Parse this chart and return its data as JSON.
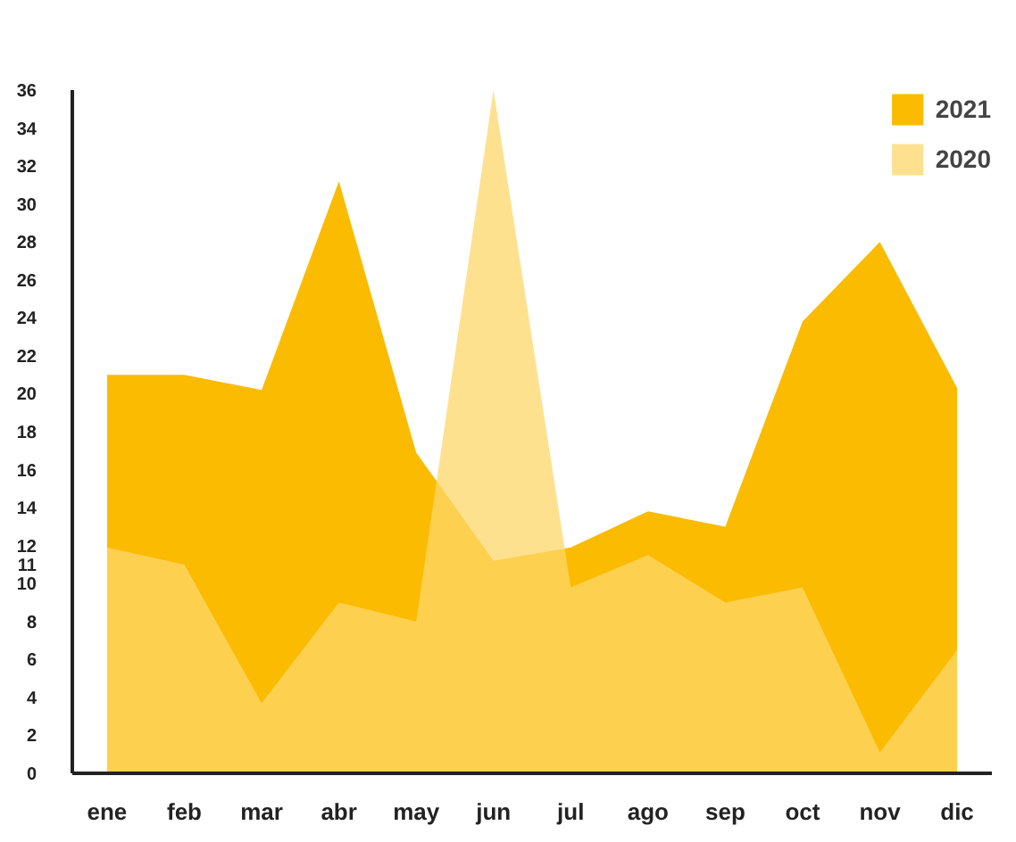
{
  "chart_data": {
    "type": "area",
    "categories": [
      "ene",
      "feb",
      "mar",
      "abr",
      "may",
      "jun",
      "jul",
      "ago",
      "sep",
      "oct",
      "nov",
      "dic"
    ],
    "series": [
      {
        "name": "2021",
        "color": "#fbbb00",
        "values": [
          21,
          21,
          20.2,
          31.2,
          16.9,
          11.2,
          11.9,
          13.8,
          13.0,
          23.8,
          28,
          20.3
        ]
      },
      {
        "name": "2020",
        "color": "#fdd76a",
        "values": [
          11.9,
          11,
          3.7,
          9.0,
          8.0,
          36,
          9.8,
          11.5,
          9.0,
          9.8,
          1.1,
          6.5
        ]
      }
    ],
    "ylim": [
      0,
      36
    ],
    "yticks": [
      0,
      2,
      4,
      6,
      8,
      10,
      11,
      12,
      14,
      16,
      18,
      20,
      22,
      24,
      26,
      28,
      30,
      32,
      34,
      36
    ],
    "grid": false,
    "legend": "top right"
  }
}
